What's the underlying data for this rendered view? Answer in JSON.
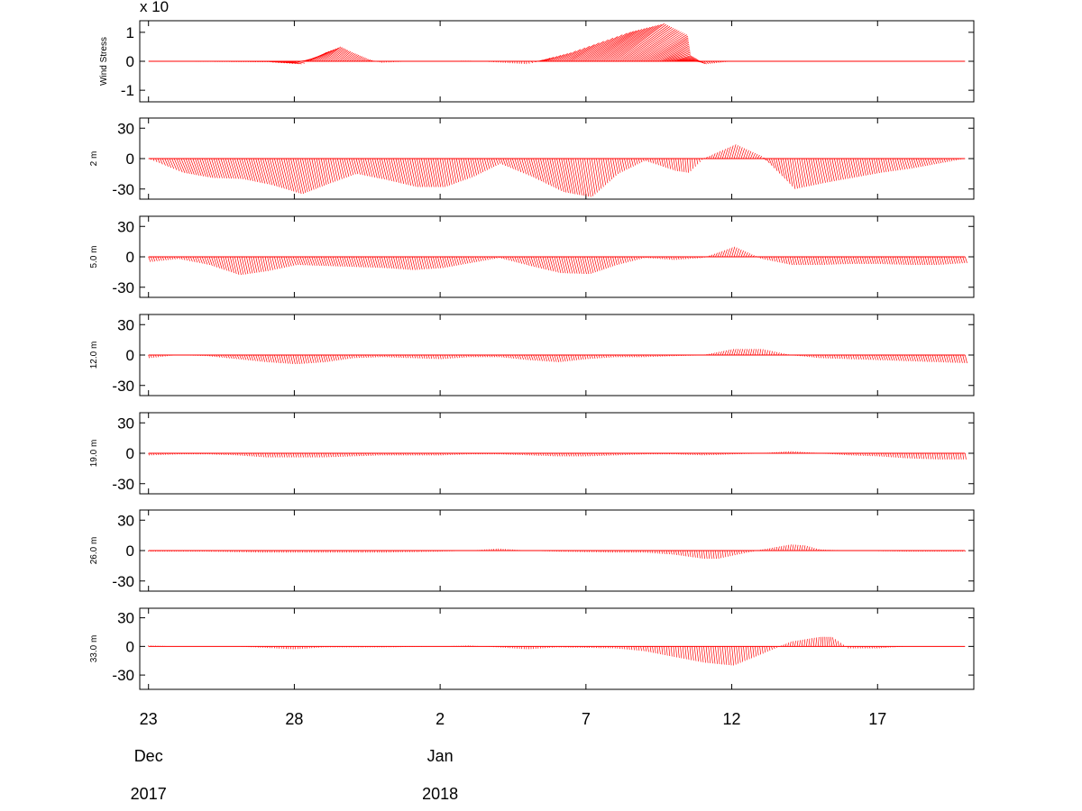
{
  "chart_data": {
    "type": "stick",
    "color": "#ff0000",
    "x_ticks": [
      "23",
      "28",
      "2",
      "7",
      "12",
      "17"
    ],
    "x_month_labels": [
      "Dec",
      "Jan"
    ],
    "x_year_labels": [
      "2017",
      "2018"
    ],
    "x_tick_days": [
      0,
      5,
      10,
      15,
      20,
      25
    ],
    "x_month_days": [
      0,
      10
    ],
    "xlim_days": [
      -0.3,
      28.3
    ],
    "panels": [
      {
        "label": "Wind Stress",
        "multiplier": "x 10",
        "ylim": [
          -1.4,
          1.4
        ],
        "yticks": [
          "1",
          "0",
          "-1"
        ],
        "ytick_values": [
          1,
          0,
          -1
        ],
        "series": [
          {
            "t": 0,
            "u": 0,
            "v": 0
          },
          {
            "t": 4,
            "u": 0.1,
            "v": -0.02
          },
          {
            "t": 5,
            "u": 0.3,
            "v": -0.1
          },
          {
            "t": 5.5,
            "u": 0.6,
            "v": 0.3
          },
          {
            "t": 6,
            "u": 0.6,
            "v": 0.5
          },
          {
            "t": 6.5,
            "u": 0.4,
            "v": 0.35
          },
          {
            "t": 7.5,
            "u": 0.1,
            "v": 0.05
          },
          {
            "t": 8,
            "u": 0,
            "v": -0.05
          },
          {
            "t": 9,
            "u": 0,
            "v": 0
          },
          {
            "t": 11,
            "u": 0,
            "v": 0.02
          },
          {
            "t": 13,
            "u": 0,
            "v": -0.1
          },
          {
            "t": 14,
            "u": 0.5,
            "v": 0.3
          },
          {
            "t": 15,
            "u": 1.5,
            "v": 1.0
          },
          {
            "t": 16,
            "u": 1.7,
            "v": 1.3
          },
          {
            "t": 17,
            "u": 1.5,
            "v": 0.9
          },
          {
            "t": 18,
            "u": 0.6,
            "v": 0.2
          },
          {
            "t": 19,
            "u": 0.1,
            "v": -0.1
          },
          {
            "t": 20,
            "u": 0,
            "v": 0
          },
          {
            "t": 28,
            "u": 0,
            "v": 0
          }
        ]
      },
      {
        "label": "2  m",
        "ylim": [
          -40,
          40
        ],
        "yticks": [
          "30",
          "0",
          "-30"
        ],
        "ytick_values": [
          30,
          0,
          -30
        ],
        "series": [
          {
            "t": 0,
            "u": 0,
            "v": 0
          },
          {
            "t": 1,
            "u": 6,
            "v": -14
          },
          {
            "t": 2,
            "u": 6,
            "v": -19
          },
          {
            "t": 3,
            "u": 6,
            "v": -20
          },
          {
            "t": 4,
            "u": 7,
            "v": -26
          },
          {
            "t": 5,
            "u": 8,
            "v": -35
          },
          {
            "t": 6,
            "u": 5,
            "v": -25
          },
          {
            "t": 7,
            "u": 4,
            "v": -15
          },
          {
            "t": 8,
            "u": 5,
            "v": -21
          },
          {
            "t": 9,
            "u": 6,
            "v": -28
          },
          {
            "t": 10,
            "u": 5,
            "v": -28
          },
          {
            "t": 11,
            "u": 4,
            "v": -18
          },
          {
            "t": 12,
            "u": 2,
            "v": -5
          },
          {
            "t": 13,
            "u": 5,
            "v": -18
          },
          {
            "t": 14,
            "u": 7,
            "v": -33
          },
          {
            "t": 15,
            "u": 6,
            "v": -38
          },
          {
            "t": 16,
            "u": 3,
            "v": -15
          },
          {
            "t": 17,
            "u": 1,
            "v": -2
          },
          {
            "t": 18,
            "u": 2,
            "v": -12
          },
          {
            "t": 18.5,
            "u": 1,
            "v": -14
          },
          {
            "t": 19,
            "u": 1,
            "v": 0
          },
          {
            "t": 20,
            "u": 4,
            "v": 14
          },
          {
            "t": 21,
            "u": 2,
            "v": 2
          },
          {
            "t": 22,
            "u": 5,
            "v": -30
          },
          {
            "t": 23,
            "u": 5,
            "v": -24
          },
          {
            "t": 24,
            "u": 4,
            "v": -19
          },
          {
            "t": 25,
            "u": 3,
            "v": -14
          },
          {
            "t": 26,
            "u": 3,
            "v": -10
          },
          {
            "t": 27,
            "u": 2,
            "v": -5
          },
          {
            "t": 28,
            "u": 0,
            "v": 0
          }
        ]
      },
      {
        "label": "5.0  m",
        "ylim": [
          -40,
          40
        ],
        "yticks": [
          "30",
          "0",
          "-30"
        ],
        "ytick_values": [
          30,
          0,
          -30
        ],
        "series": [
          {
            "t": 0,
            "u": 2,
            "v": -5
          },
          {
            "t": 1,
            "u": 1,
            "v": -2
          },
          {
            "t": 2,
            "u": 3,
            "v": -8
          },
          {
            "t": 3,
            "u": 4,
            "v": -18
          },
          {
            "t": 4,
            "u": 3,
            "v": -14
          },
          {
            "t": 5,
            "u": 3,
            "v": -8
          },
          {
            "t": 6,
            "u": 3,
            "v": -9
          },
          {
            "t": 7,
            "u": 3,
            "v": -10
          },
          {
            "t": 8,
            "u": 3,
            "v": -11
          },
          {
            "t": 9,
            "u": 3,
            "v": -13
          },
          {
            "t": 10,
            "u": 3,
            "v": -11
          },
          {
            "t": 11,
            "u": 2,
            "v": -6
          },
          {
            "t": 12,
            "u": 1,
            "v": -1
          },
          {
            "t": 13,
            "u": 3,
            "v": -9
          },
          {
            "t": 14,
            "u": 4,
            "v": -16
          },
          {
            "t": 15,
            "u": 4,
            "v": -17
          },
          {
            "t": 16,
            "u": 2,
            "v": -8
          },
          {
            "t": 17,
            "u": 1,
            "v": -1
          },
          {
            "t": 18,
            "u": 1,
            "v": -3
          },
          {
            "t": 19,
            "u": 1,
            "v": -1
          },
          {
            "t": 20,
            "u": 3,
            "v": 10
          },
          {
            "t": 21,
            "u": 1,
            "v": -2
          },
          {
            "t": 22,
            "u": 2,
            "v": -8
          },
          {
            "t": 23,
            "u": 2,
            "v": -8
          },
          {
            "t": 24,
            "u": 2,
            "v": -7
          },
          {
            "t": 25,
            "u": 2,
            "v": -7
          },
          {
            "t": 26,
            "u": 2,
            "v": -8
          },
          {
            "t": 27,
            "u": 2,
            "v": -8
          },
          {
            "t": 28,
            "u": 2,
            "v": -6
          }
        ]
      },
      {
        "label": "12.0  m",
        "ylim": [
          -40,
          40
        ],
        "yticks": [
          "30",
          "0",
          "-30"
        ],
        "ytick_values": [
          30,
          0,
          -30
        ],
        "series": [
          {
            "t": 0,
            "u": 1,
            "v": -3
          },
          {
            "t": 1,
            "u": 0,
            "v": 0
          },
          {
            "t": 2,
            "u": 1,
            "v": -1
          },
          {
            "t": 3,
            "u": 2,
            "v": -4
          },
          {
            "t": 4,
            "u": 2,
            "v": -7
          },
          {
            "t": 5,
            "u": 2,
            "v": -9
          },
          {
            "t": 6,
            "u": 2,
            "v": -7
          },
          {
            "t": 7,
            "u": 1,
            "v": -3
          },
          {
            "t": 8,
            "u": 1,
            "v": -2
          },
          {
            "t": 9,
            "u": 1,
            "v": -3
          },
          {
            "t": 10,
            "u": 1,
            "v": -4
          },
          {
            "t": 11,
            "u": 1,
            "v": -2
          },
          {
            "t": 12,
            "u": 1,
            "v": -2
          },
          {
            "t": 13,
            "u": 2,
            "v": -5
          },
          {
            "t": 14,
            "u": 2,
            "v": -7
          },
          {
            "t": 15,
            "u": 1,
            "v": -4
          },
          {
            "t": 16,
            "u": 1,
            "v": -2
          },
          {
            "t": 17,
            "u": 1,
            "v": -2
          },
          {
            "t": 18,
            "u": 1,
            "v": -1
          },
          {
            "t": 19,
            "u": 1,
            "v": 0
          },
          {
            "t": 20,
            "u": 2,
            "v": 6
          },
          {
            "t": 21,
            "u": 1,
            "v": 6
          },
          {
            "t": 22,
            "u": 1,
            "v": 0
          },
          {
            "t": 23,
            "u": 1,
            "v": -3
          },
          {
            "t": 24,
            "u": 1,
            "v": -4
          },
          {
            "t": 25,
            "u": 2,
            "v": -5
          },
          {
            "t": 26,
            "u": 2,
            "v": -6
          },
          {
            "t": 27,
            "u": 2,
            "v": -7
          },
          {
            "t": 28,
            "u": 2,
            "v": -8
          }
        ]
      },
      {
        "label": "19.0  m",
        "ylim": [
          -40,
          40
        ],
        "yticks": [
          "30",
          "0",
          "-30"
        ],
        "ytick_values": [
          30,
          0,
          -30
        ],
        "series": [
          {
            "t": 0,
            "u": 1,
            "v": -2
          },
          {
            "t": 1,
            "u": 1,
            "v": -1
          },
          {
            "t": 2,
            "u": 1,
            "v": -1
          },
          {
            "t": 3,
            "u": 1,
            "v": -2
          },
          {
            "t": 4,
            "u": 1,
            "v": -4
          },
          {
            "t": 5,
            "u": 1,
            "v": -4
          },
          {
            "t": 6,
            "u": 1,
            "v": -4
          },
          {
            "t": 7,
            "u": 1,
            "v": -3
          },
          {
            "t": 8,
            "u": 1,
            "v": -2
          },
          {
            "t": 9,
            "u": 1,
            "v": -2
          },
          {
            "t": 10,
            "u": 1,
            "v": -2
          },
          {
            "t": 11,
            "u": 1,
            "v": -1
          },
          {
            "t": 12,
            "u": 1,
            "v": -1
          },
          {
            "t": 13,
            "u": 1,
            "v": -2
          },
          {
            "t": 14,
            "u": 1,
            "v": -3
          },
          {
            "t": 15,
            "u": 1,
            "v": -3
          },
          {
            "t": 16,
            "u": 1,
            "v": -2
          },
          {
            "t": 17,
            "u": 1,
            "v": -1
          },
          {
            "t": 18,
            "u": 1,
            "v": -1
          },
          {
            "t": 19,
            "u": 1,
            "v": -2
          },
          {
            "t": 20,
            "u": 1,
            "v": -1
          },
          {
            "t": 21,
            "u": 1,
            "v": 0
          },
          {
            "t": 22,
            "u": 1,
            "v": 2
          },
          {
            "t": 23,
            "u": 1,
            "v": 0
          },
          {
            "t": 24,
            "u": 1,
            "v": -2
          },
          {
            "t": 25,
            "u": 1,
            "v": -3
          },
          {
            "t": 26,
            "u": 1,
            "v": -5
          },
          {
            "t": 27,
            "u": 1,
            "v": -6
          },
          {
            "t": 28,
            "u": 1,
            "v": -6
          }
        ]
      },
      {
        "label": "26.0  m",
        "ylim": [
          -40,
          40
        ],
        "yticks": [
          "30",
          "0",
          "-30"
        ],
        "ytick_values": [
          30,
          0,
          -30
        ],
        "series": [
          {
            "t": 0,
            "u": 0,
            "v": -1
          },
          {
            "t": 2,
            "u": 0,
            "v": -1
          },
          {
            "t": 4,
            "u": 0,
            "v": -2
          },
          {
            "t": 6,
            "u": 0,
            "v": -2
          },
          {
            "t": 8,
            "u": 0,
            "v": -2
          },
          {
            "t": 10,
            "u": 0,
            "v": -1
          },
          {
            "t": 11,
            "u": 0,
            "v": 0
          },
          {
            "t": 12,
            "u": 0,
            "v": 2
          },
          {
            "t": 13,
            "u": 0,
            "v": 0
          },
          {
            "t": 14,
            "u": 0,
            "v": -1
          },
          {
            "t": 16,
            "u": 0,
            "v": -2
          },
          {
            "t": 17,
            "u": 0,
            "v": -2
          },
          {
            "t": 18,
            "u": 1,
            "v": -4
          },
          {
            "t": 19,
            "u": 1,
            "v": -8
          },
          {
            "t": 19.5,
            "u": 1,
            "v": -8
          },
          {
            "t": 20,
            "u": 1,
            "v": -5
          },
          {
            "t": 21,
            "u": 1,
            "v": 1
          },
          {
            "t": 22,
            "u": 1,
            "v": 6
          },
          {
            "t": 22.5,
            "u": 1,
            "v": 5
          },
          {
            "t": 23,
            "u": 1,
            "v": 1
          },
          {
            "t": 24,
            "u": 0,
            "v": 0
          },
          {
            "t": 26,
            "u": 0,
            "v": -1
          },
          {
            "t": 28,
            "u": 0,
            "v": -1
          }
        ]
      },
      {
        "label": "33.0  m",
        "ylim": [
          -45,
          40
        ],
        "yticks": [
          "30",
          "0",
          "-30"
        ],
        "ytick_values": [
          30,
          0,
          -30
        ],
        "series": [
          {
            "t": 0,
            "u": 0,
            "v": 1
          },
          {
            "t": 1,
            "u": 0,
            "v": 0
          },
          {
            "t": 3,
            "u": 0,
            "v": 0
          },
          {
            "t": 5,
            "u": 0,
            "v": -3
          },
          {
            "t": 6,
            "u": 0,
            "v": -1
          },
          {
            "t": 8,
            "u": 0,
            "v": -1
          },
          {
            "t": 10,
            "u": 0,
            "v": 0
          },
          {
            "t": 11,
            "u": 0,
            "v": 1
          },
          {
            "t": 12,
            "u": 0,
            "v": -1
          },
          {
            "t": 13,
            "u": 0,
            "v": -3
          },
          {
            "t": 14,
            "u": 0,
            "v": -1
          },
          {
            "t": 16,
            "u": 0,
            "v": -2
          },
          {
            "t": 17,
            "u": 1,
            "v": -5
          },
          {
            "t": 18,
            "u": 1,
            "v": -11
          },
          {
            "t": 19,
            "u": 2,
            "v": -17
          },
          {
            "t": 20,
            "u": 2,
            "v": -20
          },
          {
            "t": 21,
            "u": 1,
            "v": -8
          },
          {
            "t": 22,
            "u": 1,
            "v": 5
          },
          {
            "t": 23,
            "u": 1,
            "v": 10
          },
          {
            "t": 23.5,
            "u": -2,
            "v": 10
          },
          {
            "t": 24,
            "u": 0,
            "v": -2
          },
          {
            "t": 25,
            "u": 1,
            "v": -2
          },
          {
            "t": 25.5,
            "u": 0,
            "v": -1
          },
          {
            "t": 26,
            "u": 0,
            "v": 0
          },
          {
            "t": 28,
            "u": 0,
            "v": 0
          }
        ]
      }
    ]
  }
}
